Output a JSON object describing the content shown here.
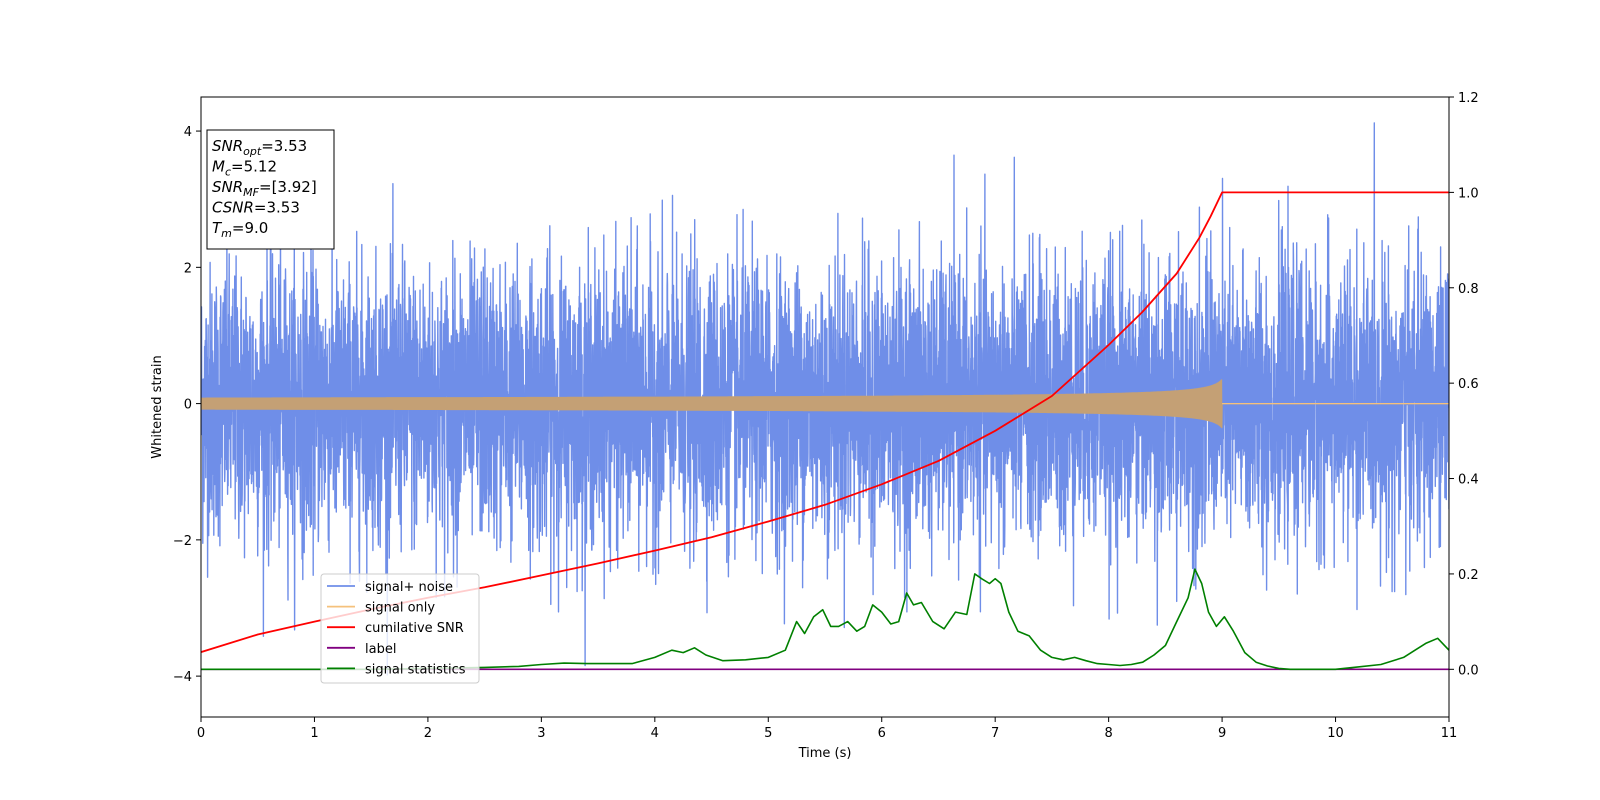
{
  "chart_data": {
    "type": "line",
    "xlabel": "Time (s)",
    "ylabel": "Whitened strain",
    "xlim": [
      0,
      11
    ],
    "ylim": [
      -4.6,
      4.5
    ],
    "y2lim": [
      -0.1,
      1.2
    ],
    "x_ticks": [
      0,
      1,
      2,
      3,
      4,
      5,
      6,
      7,
      8,
      9,
      10,
      11
    ],
    "y_ticks": [
      -4,
      -2,
      0,
      2,
      4
    ],
    "y2_ticks": [
      "0.0",
      "0.2",
      "0.4",
      "0.6",
      "0.8",
      "1.0",
      "1.2"
    ],
    "grid": false,
    "legend_position": "lower-left",
    "info_box": {
      "lines": [
        {
          "var": "SNR",
          "sub": "opt",
          "value": "=3.53"
        },
        {
          "var": "M",
          "sub": "c",
          "value": "=5.12"
        },
        {
          "var": "SNR",
          "sub": "MF",
          "value": "=[3.92]"
        },
        {
          "var": "CSNR",
          "sub": "",
          "value": "=3.53"
        },
        {
          "var": "T",
          "sub": "m",
          "value": "=9.0"
        }
      ]
    },
    "series": [
      {
        "name": "signal+ noise",
        "color": "#6f8ee8",
        "axis": "left",
        "noise_amplitude": 1.0,
        "y_peak_max": 4.12,
        "y_peak_min": -4.17
      },
      {
        "name": "signal only",
        "color": "#f5c17c",
        "axis": "left",
        "chirp_end_time": 9.0,
        "chirp_peak_amplitude": 0.35
      },
      {
        "name": "cumilative SNR",
        "color": "#ff0000",
        "axis": "right",
        "x": [
          0,
          0.5,
          1,
          1.5,
          2,
          2.5,
          3,
          3.5,
          4,
          4.5,
          5,
          5.5,
          6,
          6.5,
          7,
          7.5,
          8,
          8.3,
          8.6,
          8.8,
          8.9,
          9.0,
          10,
          11
        ],
        "y": [
          0.036,
          0.073,
          0.1,
          0.126,
          0.15,
          0.172,
          0.197,
          0.222,
          0.249,
          0.277,
          0.31,
          0.345,
          0.388,
          0.437,
          0.5,
          0.573,
          0.68,
          0.75,
          0.83,
          0.905,
          0.95,
          1.0,
          1.0,
          1.0
        ]
      },
      {
        "name": "label",
        "color": "#800080",
        "axis": "right",
        "x": [
          0,
          11
        ],
        "y": [
          0.0,
          0.0
        ]
      },
      {
        "name": "signal statistics",
        "color": "#008000",
        "axis": "right",
        "x": [
          0,
          0.5,
          1,
          1.5,
          2,
          2.5,
          2.8,
          3,
          3.2,
          3.4,
          3.6,
          3.8,
          4,
          4.15,
          4.25,
          4.35,
          4.45,
          4.6,
          4.8,
          5.0,
          5.15,
          5.25,
          5.32,
          5.4,
          5.48,
          5.55,
          5.62,
          5.7,
          5.78,
          5.85,
          5.92,
          6.0,
          6.08,
          6.15,
          6.22,
          6.28,
          6.35,
          6.45,
          6.55,
          6.65,
          6.75,
          6.82,
          6.88,
          6.95,
          7.0,
          7.05,
          7.12,
          7.2,
          7.3,
          7.4,
          7.5,
          7.6,
          7.7,
          7.8,
          7.9,
          8.0,
          8.1,
          8.2,
          8.3,
          8.4,
          8.5,
          8.6,
          8.7,
          8.76,
          8.82,
          8.88,
          8.95,
          9.02,
          9.1,
          9.2,
          9.3,
          9.4,
          9.5,
          9.6,
          9.8,
          10.0,
          10.2,
          10.4,
          10.6,
          10.7,
          10.8,
          10.9,
          11.0
        ],
        "y": [
          0.0,
          0.0,
          0.0,
          0.0,
          0.002,
          0.004,
          0.006,
          0.01,
          0.013,
          0.012,
          0.012,
          0.012,
          0.025,
          0.04,
          0.035,
          0.045,
          0.03,
          0.018,
          0.02,
          0.025,
          0.04,
          0.1,
          0.075,
          0.11,
          0.125,
          0.09,
          0.09,
          0.1,
          0.08,
          0.09,
          0.135,
          0.12,
          0.095,
          0.1,
          0.16,
          0.135,
          0.14,
          0.1,
          0.085,
          0.12,
          0.115,
          0.2,
          0.19,
          0.18,
          0.19,
          0.18,
          0.12,
          0.08,
          0.07,
          0.04,
          0.025,
          0.02,
          0.025,
          0.018,
          0.012,
          0.01,
          0.008,
          0.01,
          0.015,
          0.03,
          0.05,
          0.1,
          0.15,
          0.21,
          0.18,
          0.12,
          0.09,
          0.11,
          0.08,
          0.035,
          0.015,
          0.007,
          0.002,
          0.0,
          0.0,
          0.0,
          0.005,
          0.01,
          0.025,
          0.04,
          0.055,
          0.065,
          0.04
        ]
      }
    ]
  }
}
